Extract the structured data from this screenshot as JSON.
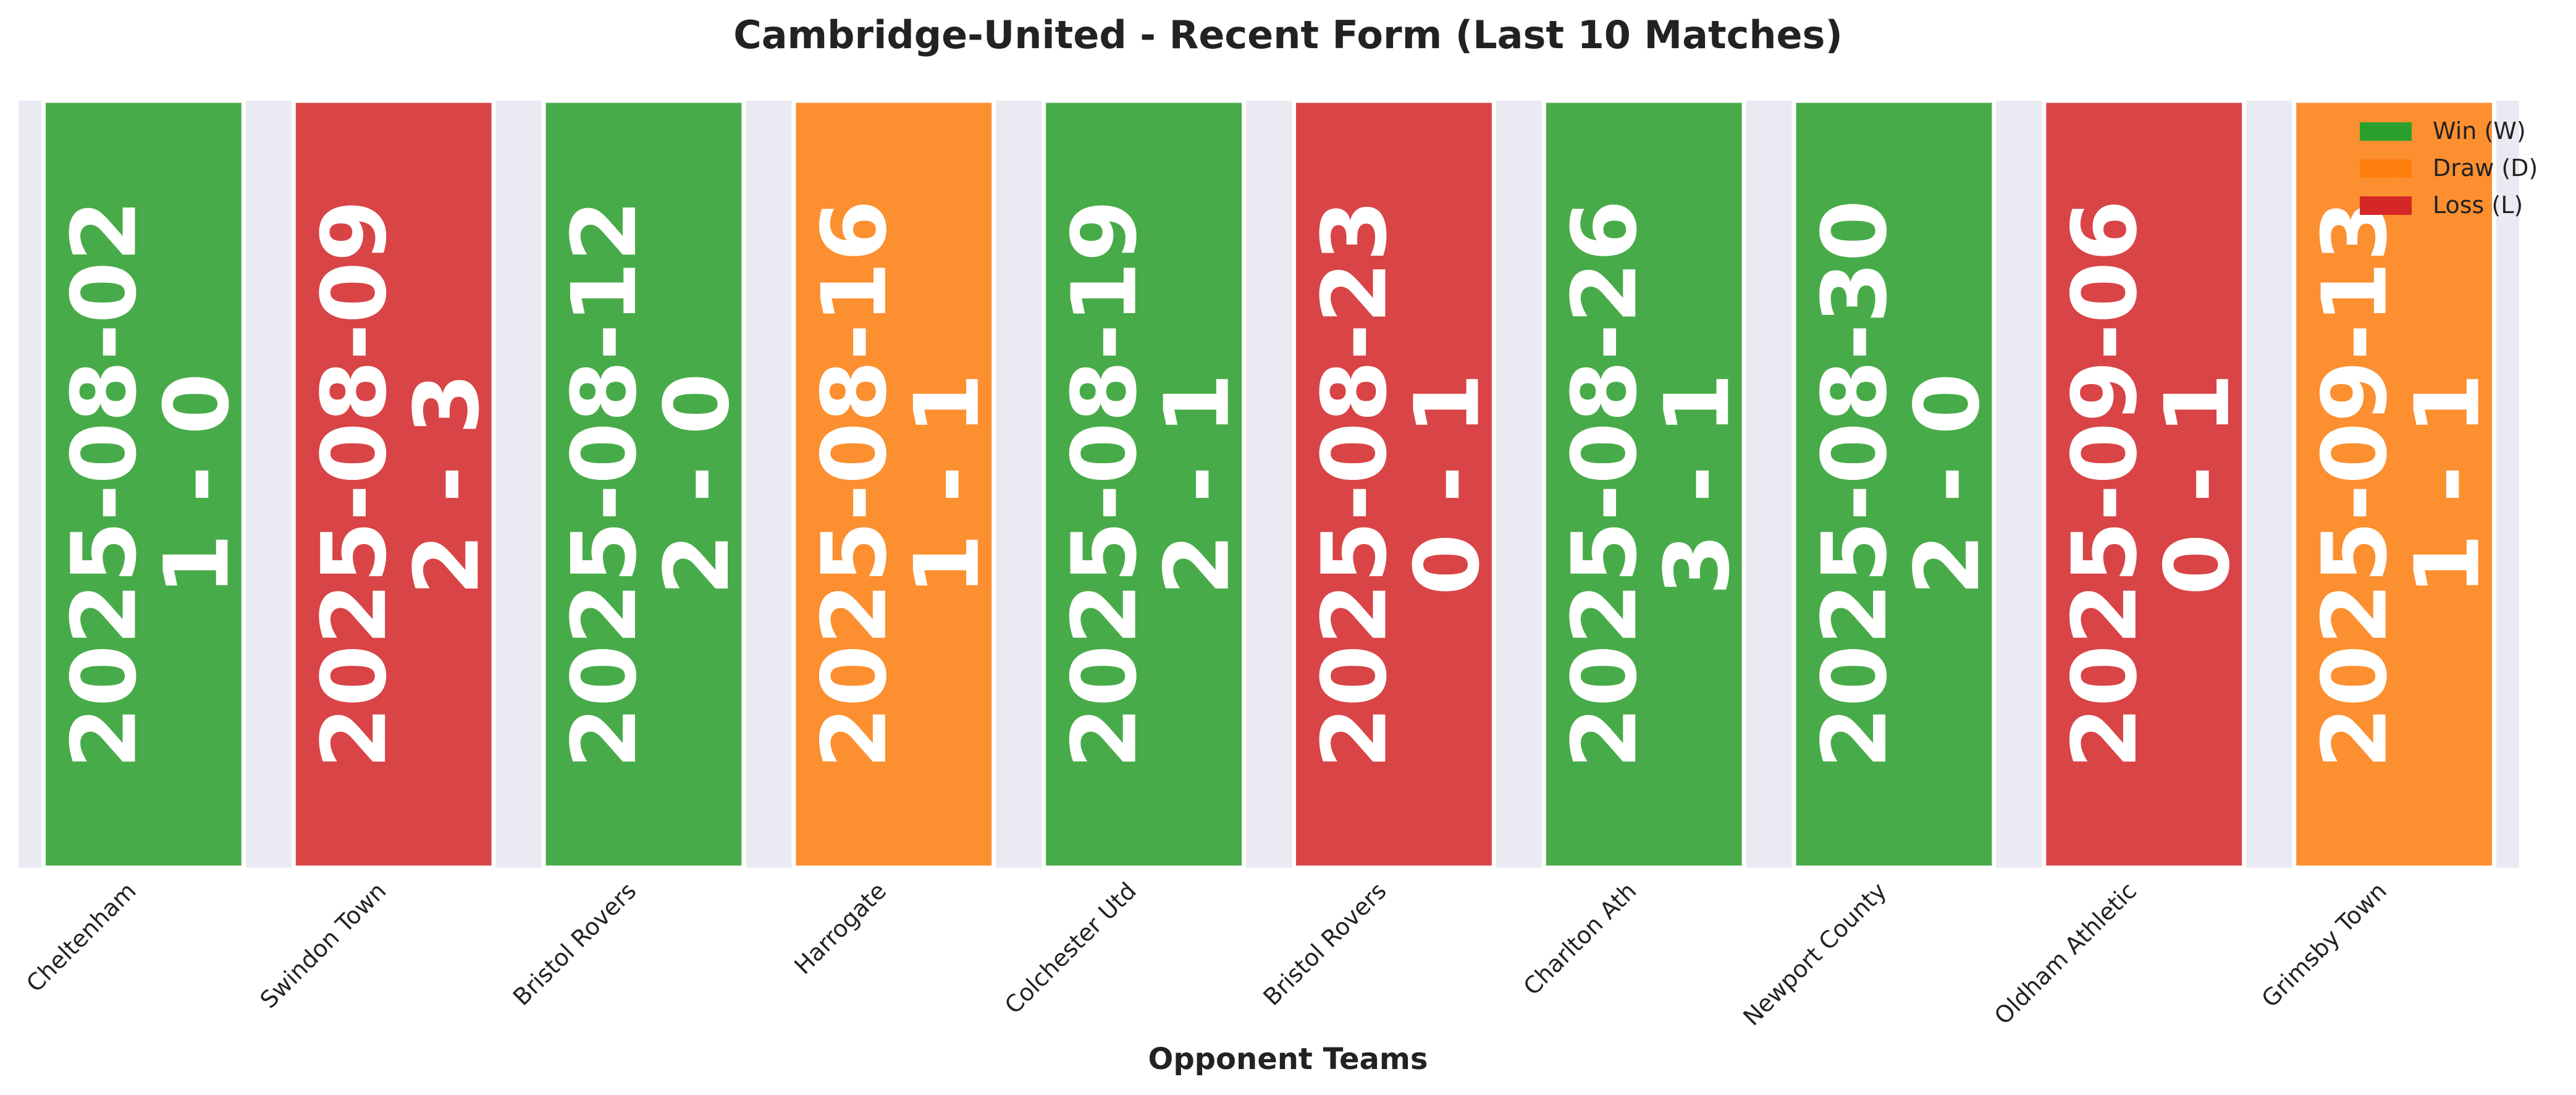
{
  "chart_data": {
    "type": "bar",
    "title": "Cambridge-United - Recent Form (Last 10 Matches)",
    "xlabel": "Opponent Teams",
    "ylabel": "",
    "categories": [
      "Cheltenham",
      "Swindon Town",
      "Bristol Rovers",
      "Harrogate",
      "Colchester Utd",
      "Bristol Rovers",
      "Charlton Ath",
      "Newport County",
      "Oldham Athletic",
      "Grimsby Town"
    ],
    "dates": [
      "2025-08-02",
      "2025-08-09",
      "2025-08-12",
      "2025-08-16",
      "2025-08-19",
      "2025-08-23",
      "2025-08-26",
      "2025-08-30",
      "2025-09-06",
      "2025-09-13"
    ],
    "scores": [
      "1 - 0",
      "2 - 3",
      "2 - 0",
      "1 - 1",
      "2 - 1",
      "0 - 1",
      "3 - 1",
      "2 - 0",
      "0 - 1",
      "1 - 1"
    ],
    "results": [
      "W",
      "L",
      "W",
      "D",
      "W",
      "L",
      "W",
      "W",
      "L",
      "D"
    ],
    "values": [
      1,
      1,
      1,
      1,
      1,
      1,
      1,
      1,
      1,
      1
    ],
    "ylim": [
      0,
      1
    ],
    "grid": true,
    "legend": {
      "placement": "top-right",
      "entries": [
        {
          "key": "W",
          "label": "Win (W)",
          "color": "#2ca02c"
        },
        {
          "key": "D",
          "label": "Draw (D)",
          "color": "#ff7f0e"
        },
        {
          "key": "L",
          "label": "Loss (L)",
          "color": "#d62728"
        }
      ]
    },
    "colors": {
      "W": "#2ca02c",
      "D": "#ff7f0e",
      "L": "#d62728",
      "plot_background": "#eaeaf2",
      "bar_label": "#ffffff",
      "text": "#222222"
    }
  }
}
